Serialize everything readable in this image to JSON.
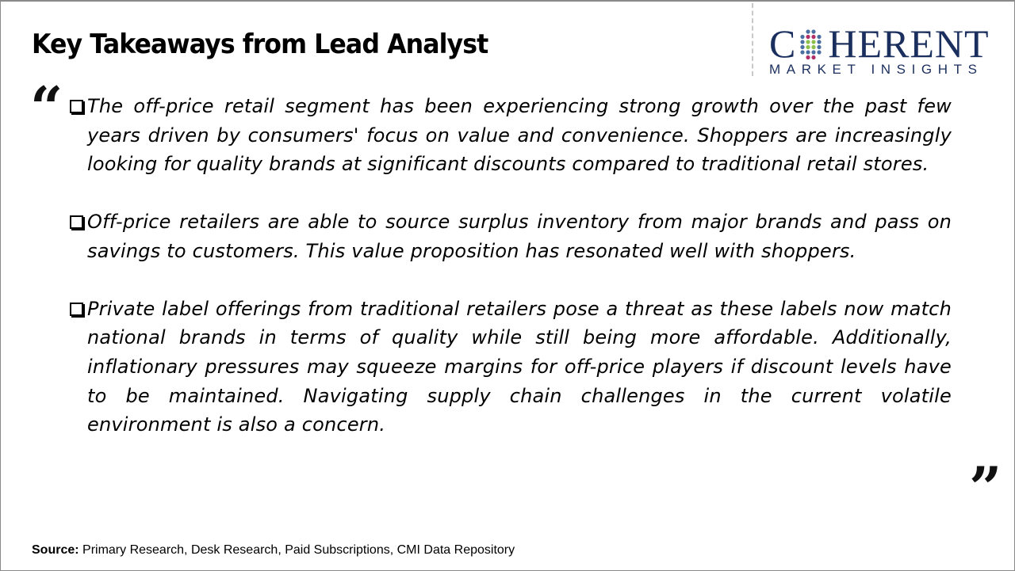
{
  "title": "Key Takeaways from Lead Analyst",
  "logo": {
    "brand": "COHERENT",
    "tagline": "MARKET INSIGHTS",
    "color": "#1b2f5e"
  },
  "bullets": [
    {
      "text": "The off-price retail segment has been experiencing strong growth over the past few years driven by consumers' focus on value and convenience. Shoppers are increasingly looking for quality brands at significant discounts compared to traditional retail stores."
    },
    {
      "text": "Off-price retailers are able to source surplus inventory from major brands and pass on savings to customers. This value proposition has resonated well with shoppers."
    },
    {
      "text": "Private label offerings from traditional retailers pose a threat as these labels now match national brands in terms of quality while still being more affordable. Additionally, inflationary pressures may squeeze margins for off-price players if discount levels have to be maintained. Navigating supply chain challenges in the current volatile environment is also a concern."
    }
  ],
  "quotes": {
    "open": "“",
    "close": "”"
  },
  "source": {
    "label": "Source:",
    "text": " Primary Research, Desk Research, Paid Subscriptions, CMI Data Repository"
  }
}
